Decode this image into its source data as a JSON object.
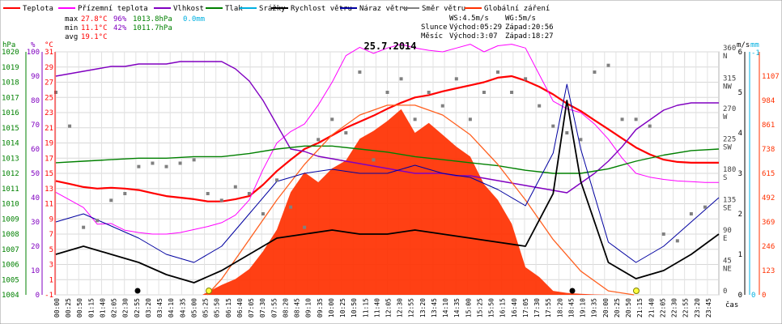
{
  "legend": [
    {
      "key": "temp",
      "label": "Teplota",
      "color": "#ff0000"
    },
    {
      "key": "feel",
      "label": "Přízemní teplota",
      "color": "#ff00ff"
    },
    {
      "key": "hum",
      "label": "Vlhkost",
      "color": "#8000c0"
    },
    {
      "key": "press",
      "label": "Tlak",
      "color": "#008000"
    },
    {
      "key": "rain",
      "label": "Srážky",
      "color": "#00b0e0"
    },
    {
      "key": "wind",
      "label": "Rychlost větru",
      "color": "#000000"
    },
    {
      "key": "gust",
      "label": "Náraz větru",
      "color": "#0000a0"
    },
    {
      "key": "dir",
      "label": "Směr větru",
      "color": "#808080"
    },
    {
      "key": "solar",
      "label": "Globální záření",
      "color": "#ff3000"
    }
  ],
  "stats": {
    "max_label": "max",
    "max_temp": "27.8°C",
    "max_hum": "96%",
    "max_press": "1013.8hPa",
    "rain_total": "0.0mm",
    "min_label": "min",
    "min_temp": "11.1°C",
    "min_hum": "42%",
    "min_press": "1011.7hPa",
    "avg_label": "avg",
    "avg_temp": "19.1°C"
  },
  "info": {
    "ws": "WS:4.5m/s",
    "wg": "WG:5m/s",
    "sun_label": "Slunce",
    "sun_rise": "Východ:05:29",
    "sun_set": "Západ:20:56",
    "moon_label": "Měsíc",
    "moon_rise": "Východ:3:07",
    "moon_set": "Západ:18:27"
  },
  "chart_data": {
    "type": "line",
    "title": "25.7.2014",
    "x_label": "čas",
    "axis_units": {
      "hpa": "hPa",
      "pct": "%",
      "temp": "°C",
      "ms": "m/s",
      "mm": "mm"
    },
    "axes": {
      "hpa": {
        "ticks": [
          1004,
          1005,
          1006,
          1007,
          1008,
          1009,
          1010,
          1011,
          1012,
          1013,
          1014,
          1015,
          1016,
          1017,
          1018,
          1019,
          1020
        ],
        "color": "#008000"
      },
      "pct": {
        "ticks": [
          0,
          10,
          20,
          30,
          40,
          50,
          60,
          70,
          80,
          90,
          100
        ],
        "color": "#8000c0"
      },
      "temp": {
        "ticks": [
          -1,
          1,
          3,
          5,
          7,
          9,
          11,
          13,
          15,
          17,
          19,
          21,
          23,
          25,
          27,
          29,
          31
        ],
        "color": "#ff0000"
      },
      "dir": {
        "ticks": [
          "0",
          "45",
          "90",
          "135",
          "180",
          "225",
          "270",
          "315",
          "360"
        ],
        "labels": [
          "",
          "NE",
          "E",
          "SE",
          "S",
          "SW",
          "W",
          "NW",
          "N"
        ],
        "color": "#404040"
      },
      "ms": {
        "ticks": [
          0,
          1,
          2,
          3,
          4,
          5,
          6
        ],
        "color": "#000000"
      },
      "mm": {
        "ticks": [
          "0",
          "-1"
        ],
        "color": "#00b0e0"
      },
      "solar": {
        "ticks": [
          0,
          123,
          246,
          369,
          492,
          615,
          738,
          861,
          984,
          1107
        ],
        "color": "#ff3000"
      }
    },
    "x_ticks": [
      "00:00",
      "00:25",
      "00:50",
      "01:15",
      "01:40",
      "02:05",
      "02:30",
      "02:55",
      "03:20",
      "03:45",
      "04:10",
      "04:35",
      "05:00",
      "05:25",
      "05:50",
      "06:15",
      "06:40",
      "07:05",
      "07:30",
      "07:55",
      "08:20",
      "08:45",
      "09:10",
      "09:35",
      "10:00",
      "10:25",
      "10:50",
      "11:15",
      "11:40",
      "12:05",
      "12:30",
      "12:55",
      "13:20",
      "13:45",
      "14:10",
      "14:35",
      "15:00",
      "15:25",
      "15:50",
      "16:15",
      "16:40",
      "17:05",
      "17:30",
      "17:55",
      "18:20",
      "18:45",
      "19:10",
      "19:35",
      "20:00",
      "20:25",
      "20:50",
      "21:15",
      "21:40",
      "22:05",
      "22:30",
      "22:55",
      "23:20",
      "23:45"
    ],
    "series": [
      {
        "key": "temp",
        "name": "Teplota",
        "axis": "temp",
        "hours": [
          0,
          0.5,
          1,
          1.5,
          2,
          2.5,
          3,
          3.5,
          4,
          4.5,
          5,
          5.5,
          6,
          6.5,
          7,
          7.5,
          8,
          8.5,
          9,
          9.5,
          10,
          10.5,
          11,
          11.5,
          12,
          12.5,
          13,
          13.5,
          14,
          14.5,
          15,
          15.5,
          16,
          16.5,
          17,
          17.5,
          18,
          18.5,
          19,
          19.5,
          20,
          20.5,
          21,
          21.5,
          22,
          22.5,
          23,
          23.5,
          24
        ],
        "values": [
          14,
          13.6,
          13.2,
          13,
          13.1,
          13,
          12.8,
          12.4,
          12,
          11.8,
          11.6,
          11.3,
          11.3,
          11.6,
          12,
          13.5,
          15.3,
          16.8,
          18.2,
          19,
          20,
          21,
          21.8,
          22.6,
          23.5,
          24.3,
          25,
          25.3,
          25.8,
          26.2,
          26.6,
          27,
          27.6,
          27.8,
          27.2,
          26.4,
          25.4,
          24.2,
          23.2,
          22,
          20.8,
          19.6,
          18.4,
          17.5,
          16.8,
          16.5,
          16.4,
          16.4,
          16.4
        ]
      },
      {
        "key": "feel",
        "name": "Přízemní teplota",
        "axis": "temp",
        "hours": [
          0,
          0.5,
          1,
          1.5,
          2,
          2.5,
          3,
          3.5,
          4,
          4.5,
          5,
          5.5,
          6,
          6.5,
          7,
          7.5,
          8,
          8.5,
          9,
          9.5,
          10,
          10.5,
          11,
          11.5,
          12,
          12.5,
          13,
          13.5,
          14,
          14.5,
          15,
          15.5,
          16,
          16.5,
          17,
          17.5,
          18,
          18.5,
          19,
          19.5,
          20,
          20.5,
          21,
          21.5,
          22,
          22.5,
          23,
          23.5,
          24
        ],
        "values": [
          12.5,
          11.5,
          10.5,
          8.3,
          8.4,
          7.5,
          7.2,
          7,
          7,
          7.2,
          7.6,
          8,
          8.5,
          9.5,
          11.5,
          15.5,
          19,
          20.5,
          21.5,
          24,
          27,
          30.5,
          31.6,
          30.8,
          31.5,
          32,
          31.5,
          31.2,
          31,
          31.5,
          32,
          31,
          31.8,
          32,
          31.5,
          28,
          24.5,
          23.5,
          23,
          21.5,
          19.5,
          17,
          15,
          14.5,
          14.2,
          14,
          13.9,
          13.8,
          13.8
        ]
      },
      {
        "key": "hum",
        "name": "Vlhkost",
        "axis": "pct",
        "hours": [
          0,
          0.5,
          1,
          1.5,
          2,
          2.5,
          3,
          3.5,
          4,
          4.5,
          5,
          5.5,
          6,
          6.5,
          7,
          7.5,
          8,
          8.5,
          9,
          9.5,
          10,
          10.5,
          11,
          11.5,
          12,
          12.5,
          13,
          13.5,
          14,
          14.5,
          15,
          15.5,
          16,
          16.5,
          17,
          17.5,
          18,
          18.5,
          19,
          19.5,
          20,
          20.5,
          21,
          21.5,
          22,
          22.5,
          23,
          23.5,
          24
        ],
        "values": [
          90,
          91,
          92,
          93,
          94,
          94,
          95,
          95,
          95,
          96,
          96,
          96,
          96,
          93,
          88,
          80,
          70,
          60,
          59,
          57,
          56,
          55,
          54,
          53,
          52,
          51,
          50,
          50,
          50,
          49,
          49,
          48,
          47,
          46,
          45,
          44,
          43,
          42,
          46,
          50,
          55,
          61,
          68,
          72,
          76,
          78,
          79,
          79,
          79
        ]
      },
      {
        "key": "press",
        "name": "Tlak",
        "axis": "hpa",
        "hours": [
          0,
          1,
          2,
          3,
          4,
          5,
          6,
          7,
          8,
          9,
          10,
          11,
          12,
          13,
          14,
          15,
          16,
          17,
          18,
          19,
          20,
          21,
          22,
          23,
          24
        ],
        "values": [
          1012.7,
          1012.8,
          1012.9,
          1013,
          1013,
          1013.1,
          1013.1,
          1013.3,
          1013.6,
          1013.8,
          1013.8,
          1013.6,
          1013.4,
          1013.1,
          1012.9,
          1012.7,
          1012.5,
          1012.2,
          1012,
          1012,
          1012.3,
          1012.8,
          1013.2,
          1013.5,
          1013.6
        ]
      },
      {
        "key": "solar",
        "name": "Globální záření",
        "axis": "solar",
        "hours": [
          5.3,
          6,
          6.5,
          7,
          7.5,
          8,
          8.5,
          9,
          9.5,
          10,
          10.5,
          11,
          11.5,
          12,
          12.5,
          13,
          13.5,
          14,
          14.5,
          15,
          15.5,
          16,
          16.5,
          17,
          17.5,
          18,
          18.5,
          19,
          19.5,
          20.2
        ],
        "values": [
          0,
          50,
          80,
          130,
          220,
          330,
          520,
          620,
          570,
          640,
          680,
          790,
          830,
          880,
          940,
          820,
          870,
          810,
          750,
          700,
          560,
          480,
          360,
          140,
          90,
          20,
          10,
          5,
          2,
          0
        ]
      },
      {
        "key": "solar_theory",
        "name": "",
        "axis": "solar",
        "hours": [
          5.48,
          6,
          7,
          8,
          9,
          10,
          11,
          12,
          13,
          14,
          15,
          16,
          17,
          18,
          19,
          20,
          20.93
        ],
        "values": [
          0,
          80,
          280,
          480,
          660,
          810,
          910,
          960,
          960,
          910,
          810,
          660,
          480,
          280,
          120,
          20,
          0
        ]
      },
      {
        "key": "wind",
        "name": "Rychlost větru",
        "axis": "ms",
        "hours": [
          0,
          1,
          2,
          3,
          4,
          5,
          6,
          7,
          8,
          9,
          10,
          11,
          12,
          13,
          14,
          15,
          16,
          17,
          18,
          18.5,
          19,
          20,
          21,
          22,
          23,
          24
        ],
        "values": [
          1,
          1.2,
          1,
          0.8,
          0.5,
          0.3,
          0.6,
          1,
          1.4,
          1.5,
          1.6,
          1.5,
          1.5,
          1.6,
          1.5,
          1.4,
          1.3,
          1.2,
          2.5,
          4.8,
          2.8,
          0.8,
          0.4,
          0.6,
          1,
          1.5
        ]
      },
      {
        "key": "gust",
        "name": "Náraz větru",
        "axis": "ms",
        "hours": [
          0,
          1,
          2,
          3,
          4,
          5,
          6,
          7,
          8,
          9,
          10,
          11,
          12,
          13,
          14,
          15,
          16,
          17,
          18,
          18.5,
          19,
          20,
          21,
          22,
          23,
          24
        ],
        "values": [
          1.8,
          2,
          1.7,
          1.4,
          1,
          0.8,
          1.2,
          2,
          2.8,
          3,
          3.1,
          3,
          3,
          3.2,
          3,
          2.9,
          2.6,
          2.2,
          3.5,
          5.2,
          3.6,
          1.3,
          0.8,
          1.2,
          1.8,
          2.4
        ]
      },
      {
        "key": "dir",
        "name": "Směr větru",
        "axis": "dir",
        "hours": [
          0,
          0.5,
          1,
          1.5,
          2,
          2.5,
          3,
          3.5,
          4,
          4.5,
          5,
          5.5,
          6,
          6.5,
          7,
          7.5,
          8,
          8.5,
          9,
          9.5,
          10,
          10.5,
          11,
          11.5,
          12,
          12.5,
          13,
          13.5,
          14,
          14.5,
          15,
          15.5,
          16,
          16.5,
          17,
          17.5,
          18,
          18.5,
          19,
          19.5,
          20,
          20.5,
          21,
          21.5,
          22,
          22.5,
          23,
          23.5
        ],
        "values": [
          300,
          250,
          100,
          110,
          140,
          150,
          190,
          195,
          190,
          195,
          200,
          150,
          140,
          160,
          150,
          120,
          170,
          130,
          100,
          230,
          260,
          240,
          330,
          200,
          300,
          320,
          260,
          300,
          280,
          320,
          260,
          300,
          330,
          300,
          320,
          280,
          250,
          240,
          230,
          330,
          340,
          260,
          260,
          250,
          90,
          80,
          120,
          130
        ]
      }
    ]
  }
}
